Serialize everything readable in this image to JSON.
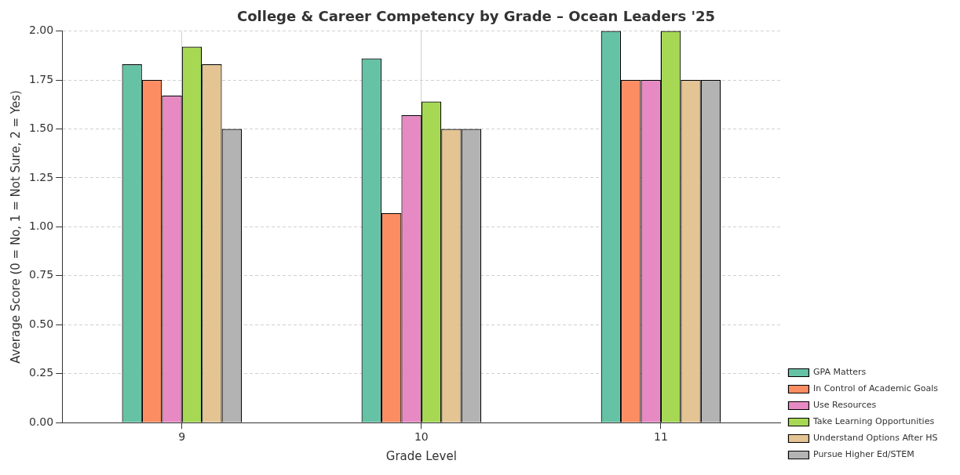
{
  "chart_data": {
    "type": "bar",
    "title": "College & Career Competency by Grade – Ocean Leaders '25",
    "xlabel": "Grade Level",
    "ylabel": "Average Score (0 = No, 1 = Not Sure, 2 = Yes)",
    "categories": [
      "9",
      "10",
      "11"
    ],
    "series": [
      {
        "name": "GPA Matters",
        "color": "#66c2a5",
        "values": [
          1.83,
          1.86,
          2.0
        ]
      },
      {
        "name": "In Control of Academic Goals",
        "color": "#fc8d62",
        "values": [
          1.75,
          1.07,
          1.75
        ]
      },
      {
        "name": "Use Resources",
        "color": "#e78ac3",
        "values": [
          1.67,
          1.57,
          1.75
        ]
      },
      {
        "name": "Take Learning Opportunities",
        "color": "#a6d854",
        "values": [
          1.92,
          1.64,
          2.0
        ]
      },
      {
        "name": "Understand Options After HS",
        "color": "#e5c494",
        "values": [
          1.83,
          1.5,
          1.75
        ]
      },
      {
        "name": "Pursue Higher Ed/STEM",
        "color": "#b3b3b3",
        "values": [
          1.5,
          1.5,
          1.75
        ]
      }
    ],
    "ylim": [
      0,
      2
    ],
    "yticks": [
      {
        "value": 0,
        "label": "0.00"
      },
      {
        "value": 0.25,
        "label": "0.25"
      },
      {
        "value": 0.5,
        "label": "0.50"
      },
      {
        "value": 0.75,
        "label": "0.75"
      },
      {
        "value": 1,
        "label": "1.00"
      },
      {
        "value": 1.25,
        "label": "1.25"
      },
      {
        "value": 1.5,
        "label": "1.50"
      },
      {
        "value": 1.75,
        "label": "1.75"
      },
      {
        "value": 2,
        "label": "2.00"
      }
    ],
    "grid": true,
    "legend": "bottom right"
  }
}
